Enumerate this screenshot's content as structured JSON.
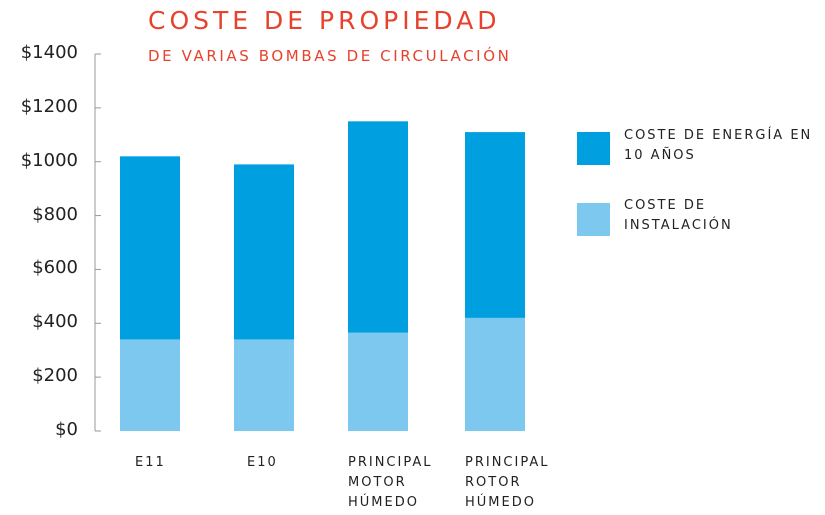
{
  "chart_data": {
    "type": "stacked_bar",
    "title": "COSTE DE PROPIEDAD",
    "subtitle": "DE VARIAS BOMBAS DE CIRCULACIÓN",
    "categories": [
      "E11",
      "E10",
      "PRINCIPAL MOTOR HÚMEDO",
      "PRINCIPAL ROTOR HÚMEDO"
    ],
    "series": [
      {
        "name": "COSTE DE INSTALACIÓN",
        "color": "#7cc8ef",
        "values": [
          340,
          340,
          365,
          420
        ]
      },
      {
        "name": "COSTE DE ENERGÍA EN 10 AÑOS",
        "color": "#00a0e0",
        "values": [
          680,
          650,
          785,
          690
        ]
      }
    ],
    "ylim": [
      0,
      1400
    ],
    "yticks": [
      {
        "value": 0,
        "label": "$0"
      },
      {
        "value": 200,
        "label": "$200"
      },
      {
        "value": 400,
        "label": "$400"
      },
      {
        "value": 600,
        "label": "$600"
      },
      {
        "value": 800,
        "label": "$800"
      },
      {
        "value": 1000,
        "label": "$1000"
      },
      {
        "value": 1200,
        "label": "$1200"
      },
      {
        "value": 1400,
        "label": "$1400"
      }
    ],
    "legend": "right"
  }
}
